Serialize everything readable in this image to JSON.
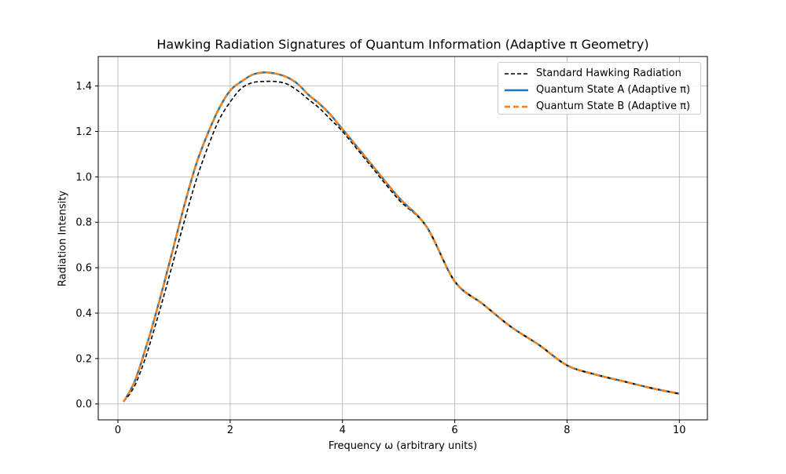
{
  "chart_data": {
    "type": "line",
    "title": "Hawking Radiation Signatures of Quantum Information (Adaptive π Geometry)",
    "xlabel": "Frequency ω (arbitrary units)",
    "ylabel": "Radiation Intensity",
    "xlim": [
      -0.35,
      10.5
    ],
    "ylim": [
      -0.07,
      1.53
    ],
    "xticks": [
      0,
      2,
      4,
      6,
      8,
      10
    ],
    "yticks": [
      0.0,
      0.2,
      0.4,
      0.6,
      0.8,
      1.0,
      1.2,
      1.4
    ],
    "xtick_labels": [
      "0",
      "2",
      "4",
      "6",
      "8",
      "10"
    ],
    "ytick_labels": [
      "0.0",
      "0.2",
      "0.4",
      "0.6",
      "0.8",
      "1.0",
      "1.2",
      "1.4"
    ],
    "grid": true,
    "legend_position": "top-right",
    "x": [
      0.1,
      0.2,
      0.3,
      0.4,
      0.5,
      0.6,
      0.8,
      1.0,
      1.2,
      1.4,
      1.6,
      1.8,
      2.0,
      2.2,
      2.4,
      2.6,
      2.8,
      3.0,
      3.2,
      3.4,
      3.6,
      3.8,
      4.0,
      4.5,
      5.0,
      5.5,
      6.0,
      6.5,
      7.0,
      7.5,
      8.0,
      8.5,
      9.0,
      9.5,
      10.0
    ],
    "series": [
      {
        "name": "Standard Hawking Radiation",
        "color": "#000000",
        "style": "dashed",
        "values": [
          0.01,
          0.04,
          0.08,
          0.14,
          0.21,
          0.29,
          0.46,
          0.64,
          0.82,
          0.99,
          1.13,
          1.25,
          1.33,
          1.39,
          1.415,
          1.42,
          1.42,
          1.41,
          1.38,
          1.34,
          1.3,
          1.25,
          1.2,
          1.05,
          0.9,
          0.78,
          0.54,
          0.44,
          0.34,
          0.26,
          0.17,
          0.13,
          0.1,
          0.07,
          0.045
        ]
      },
      {
        "name": "Quantum State A (Adaptive π)",
        "color": "#1f77b4",
        "style": "solid",
        "values": [
          0.01,
          0.05,
          0.1,
          0.17,
          0.25,
          0.33,
          0.51,
          0.7,
          0.89,
          1.06,
          1.19,
          1.3,
          1.38,
          1.42,
          1.45,
          1.46,
          1.455,
          1.44,
          1.41,
          1.36,
          1.32,
          1.27,
          1.21,
          1.06,
          0.91,
          0.78,
          0.54,
          0.44,
          0.34,
          0.26,
          0.17,
          0.13,
          0.1,
          0.07,
          0.045
        ]
      },
      {
        "name": "Quantum State B (Adaptive π)",
        "color": "#ff7f0e",
        "style": "dashed",
        "values": [
          0.01,
          0.05,
          0.1,
          0.17,
          0.25,
          0.33,
          0.51,
          0.7,
          0.89,
          1.06,
          1.19,
          1.3,
          1.38,
          1.42,
          1.45,
          1.46,
          1.455,
          1.44,
          1.41,
          1.36,
          1.32,
          1.27,
          1.21,
          1.06,
          0.91,
          0.78,
          0.54,
          0.44,
          0.34,
          0.26,
          0.17,
          0.13,
          0.1,
          0.07,
          0.045
        ]
      }
    ]
  }
}
